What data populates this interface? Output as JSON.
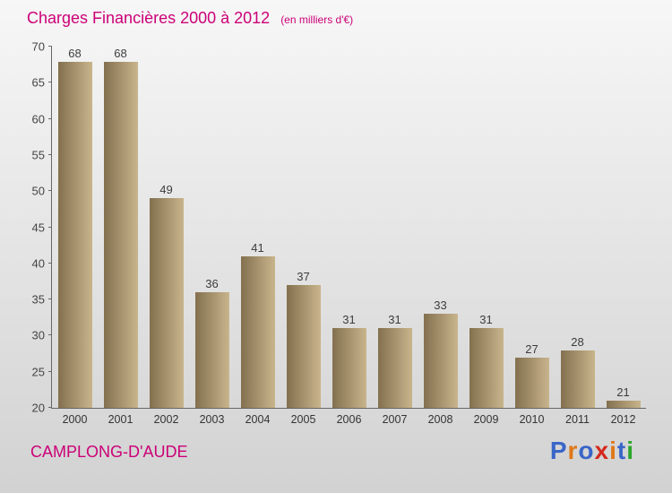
{
  "title": {
    "text": "Charges Financières 2000 à 2012",
    "subtitle": "(en milliers d'€)"
  },
  "footer": {
    "location": "CAMPLONG-D'AUDE"
  },
  "logo": {
    "name": "Proxiti",
    "letters": [
      {
        "char": "P",
        "color": "#3a66c8"
      },
      {
        "char": "r",
        "color": "#e07818"
      },
      {
        "char": "o",
        "color": "#3a66c8"
      },
      {
        "char": "x",
        "color": "#d42a1e"
      },
      {
        "char": "i",
        "color": "#e07818"
      },
      {
        "char": "t",
        "color": "#3a66c8"
      },
      {
        "char": "i",
        "color": "#2da52d"
      }
    ]
  },
  "colors": {
    "accent": "#cc0077",
    "axis": "#666666",
    "text": "#444444",
    "bar_gradient_start": "#83704e",
    "bar_gradient_end": "#c9b58c",
    "background_top": "#f7f7f7",
    "background_bottom": "#d2d2d2"
  },
  "chart_data": {
    "type": "bar",
    "title": "Charges Financières 2000 à 2012",
    "subtitle": "(en milliers d'€)",
    "categories": [
      "2000",
      "2001",
      "2002",
      "2003",
      "2004",
      "2005",
      "2006",
      "2007",
      "2008",
      "2009",
      "2010",
      "2011",
      "2012"
    ],
    "values": [
      68,
      68,
      49,
      36,
      41,
      37,
      31,
      31,
      33,
      31,
      27,
      28,
      21
    ],
    "xlabel": "",
    "ylabel": "",
    "ylim": [
      20,
      70
    ],
    "ytick_step": 5,
    "grid": false,
    "legend": false,
    "value_labels": true
  }
}
